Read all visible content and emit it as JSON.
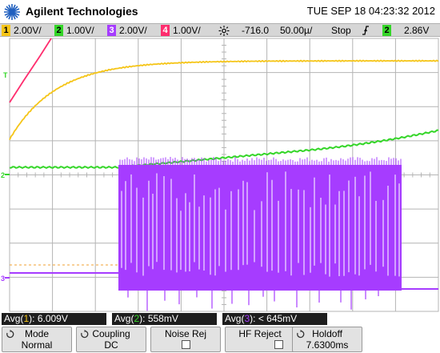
{
  "header": {
    "brand": "Agilent Technologies",
    "datetime": "TUE SEP 18 04:23:32 2012"
  },
  "status": {
    "ch1": {
      "num": "1",
      "scale": "2.00V/",
      "color": "#f5c518"
    },
    "ch2": {
      "num": "2",
      "scale": "1.00V/",
      "color": "#35d629"
    },
    "ch3": {
      "num": "3",
      "scale": "2.00V/",
      "color": "#a63cff"
    },
    "ch4": {
      "num": "4",
      "scale": "1.00V/",
      "color": "#ff2d6e"
    },
    "trig_icon": "trigger-sun-icon",
    "delay": "-716.0",
    "timebase": "50.00µ/",
    "run_state": "Stop",
    "trig_edge_icon": "rising-edge-icon",
    "trig_source": "2",
    "trig_level": "2.86V"
  },
  "markers": {
    "t": "T",
    "ch2": "2",
    "ch3": "3"
  },
  "measurements": {
    "m1": {
      "prefix": "Avg(",
      "ch": "1",
      "suffix": "): 6.009V"
    },
    "m2": {
      "prefix": "Avg(",
      "ch": "2",
      "suffix": "): 558mV"
    },
    "m3": {
      "prefix": "Avg(",
      "ch": "3",
      "suffix": "): < 645mV"
    }
  },
  "softkeys": {
    "mode": {
      "label": "Mode",
      "value": "Normal"
    },
    "coupling": {
      "label": "Coupling",
      "value": "DC"
    },
    "noise_rej": {
      "label": "Noise Rej"
    },
    "hf_reject": {
      "label": "HF Reject"
    },
    "holdoff": {
      "label": "Holdoff",
      "value": "7.6300ms"
    }
  },
  "colors": {
    "ch1": "#f5c518",
    "ch2": "#35d629",
    "ch3": "#a63cff",
    "ch4": "#ff2d6e",
    "grid": "#b4b4b4"
  }
}
